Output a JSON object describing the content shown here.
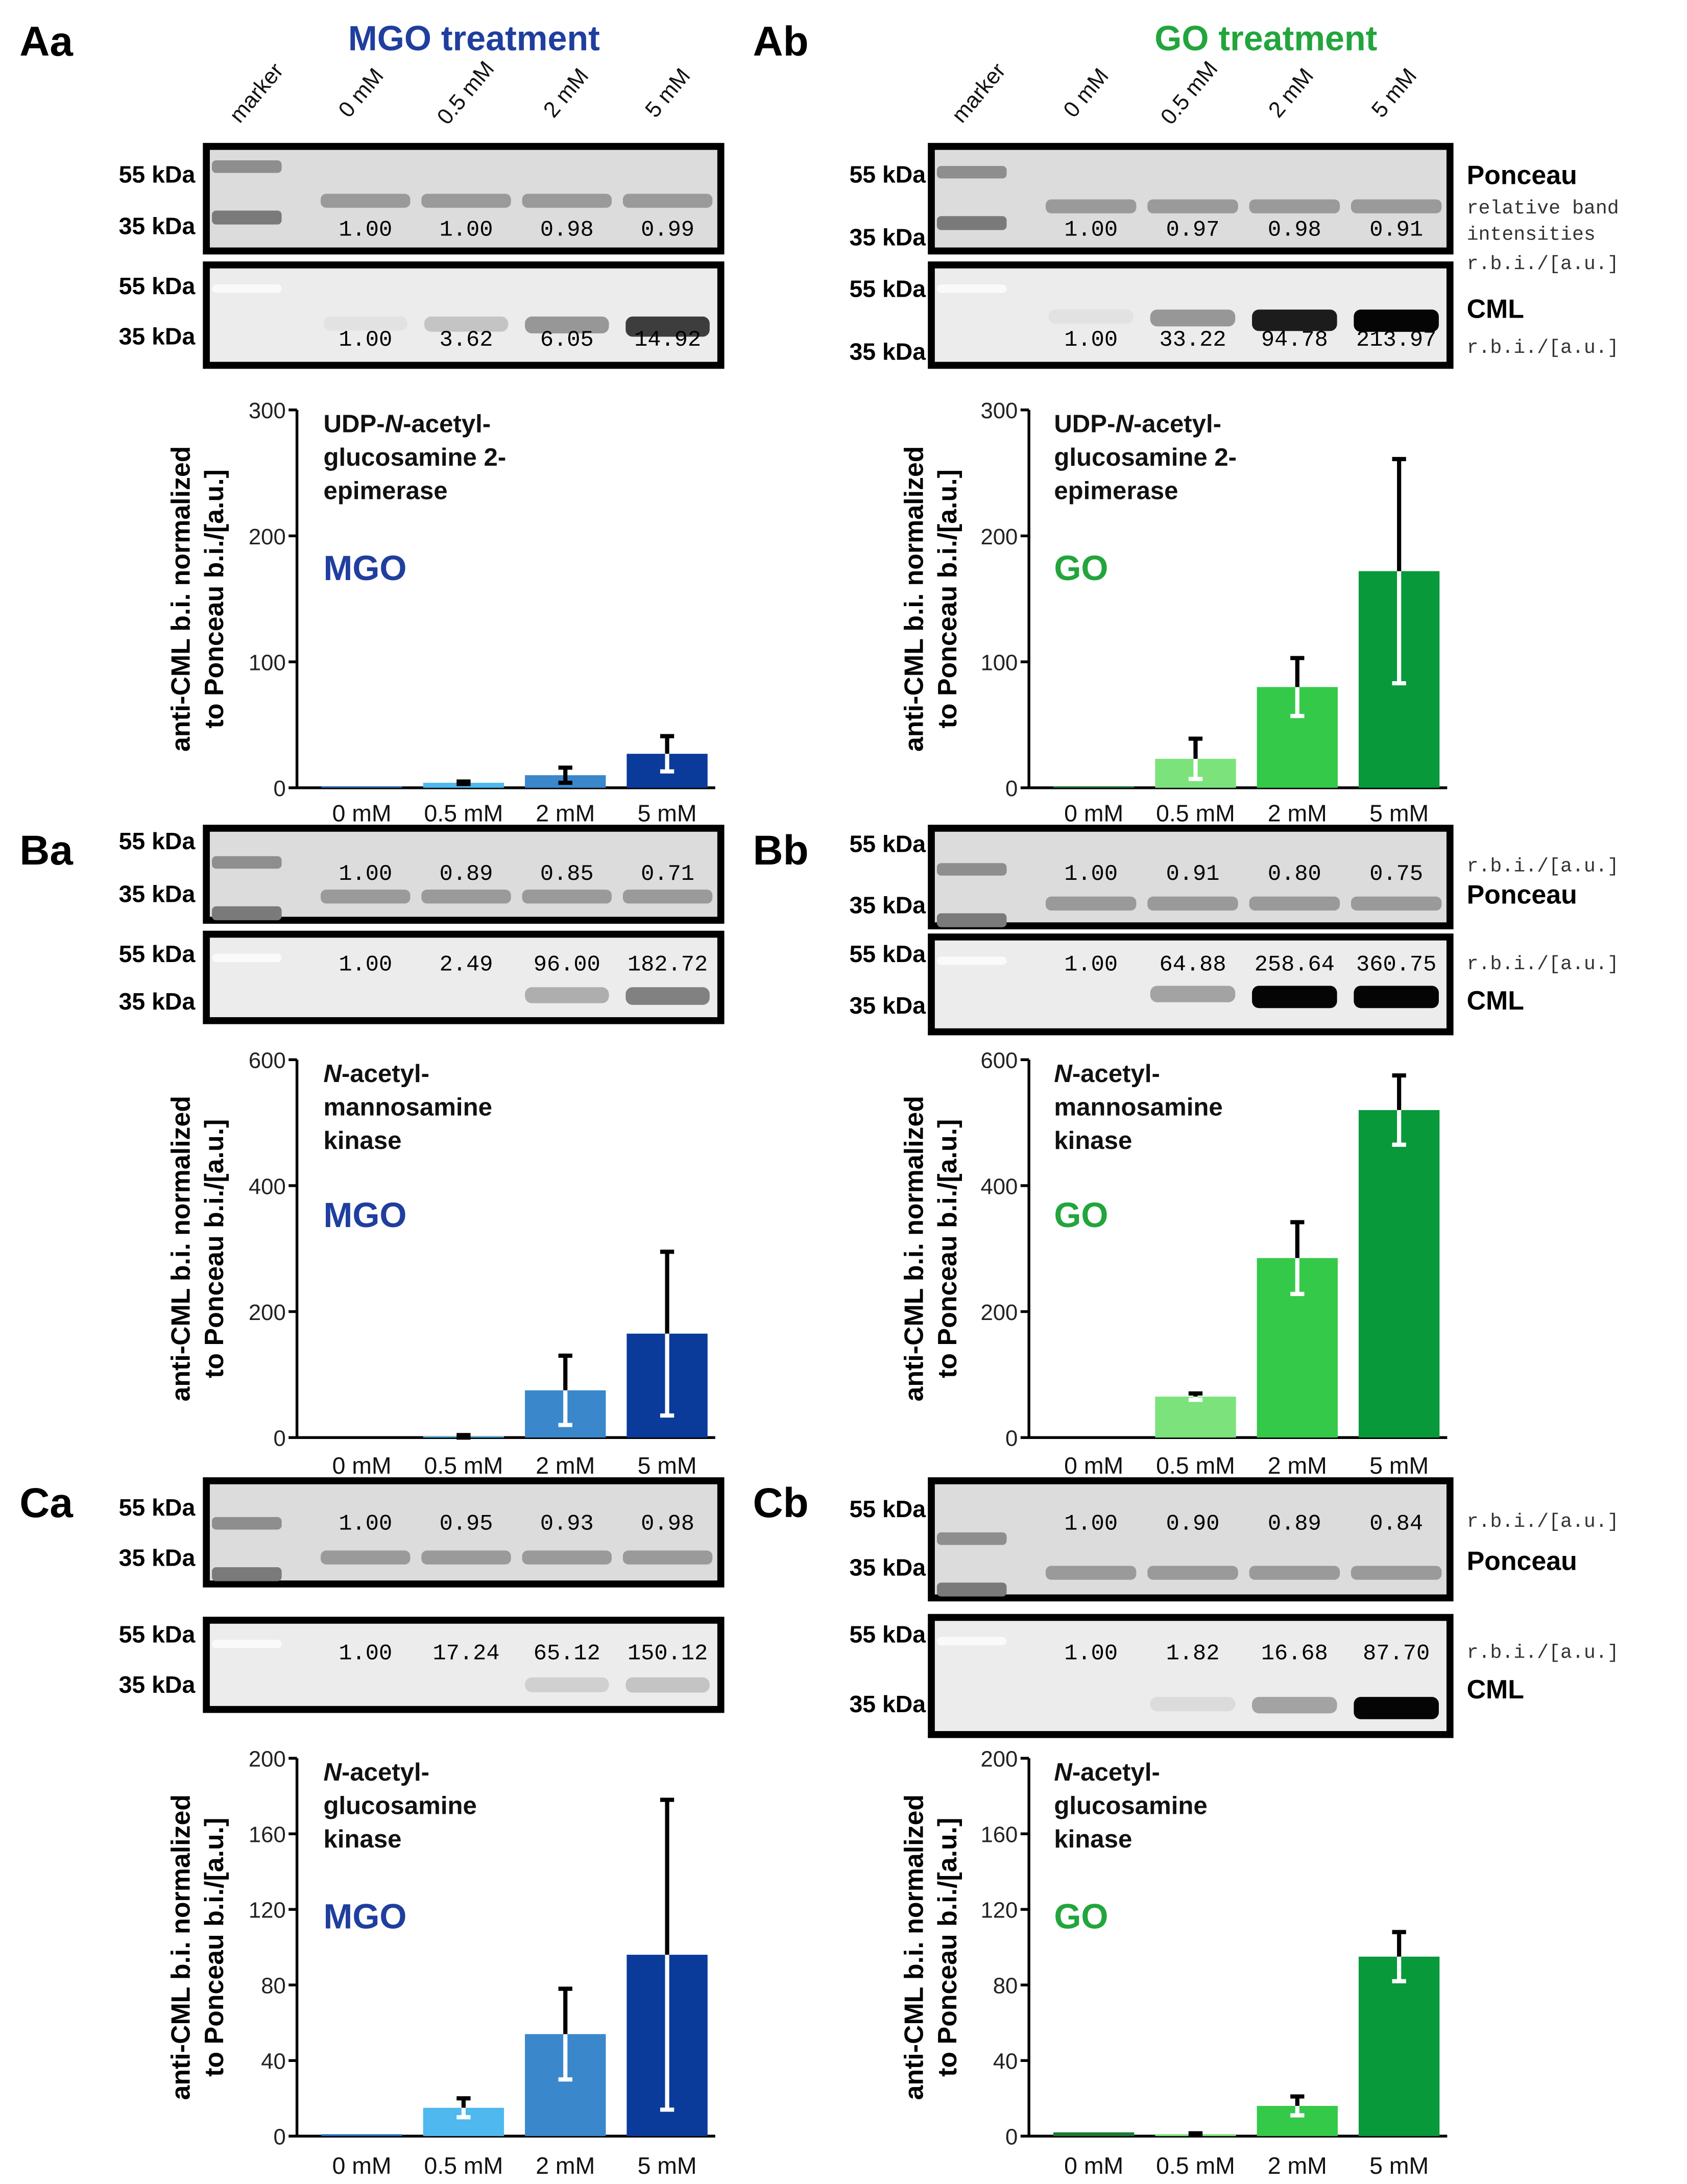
{
  "colors": {
    "mgo_title": "#1f3e9e",
    "go_title": "#22a53c",
    "mgo_bars": [
      "#2a6cc0",
      "#4fb8ee",
      "#3a87cc",
      "#0a3a9a"
    ],
    "go_bars": [
      "#1a7a35",
      "#7ce27c",
      "#35c94a",
      "#07993a"
    ],
    "error_dark": "#000000",
    "error_light": "#ffffff"
  },
  "headers": {
    "mgo": "MGO treatment",
    "go": "GO treatment"
  },
  "common": {
    "lanes": [
      "marker",
      "0 mM",
      "0.5 mM",
      "2 mM",
      "5 mM"
    ],
    "kda_55": "55 kDa",
    "kda_35": "35 kDa",
    "ponceau": "Ponceau",
    "cml": "CML",
    "rbi_full_1": "relative band",
    "rbi_full_2": "intensities",
    "rbi_abbr": "r.b.i./[a.u.]",
    "ylabel_1": "anti-CML b.i. normalized",
    "ylabel_2": "to Ponceau b.i./[a.u.]"
  },
  "panels": [
    {
      "label": "Aa",
      "ponceau_values": [
        "1.00",
        "1.00",
        "0.98",
        "0.99"
      ],
      "cml_values": [
        "1.00",
        "3.62",
        "6.05",
        "14.92"
      ],
      "treatment_label": "MGO",
      "title_lines": [
        "UDP-N-acetyl-",
        "glucosamine 2-",
        "epimerase"
      ]
    },
    {
      "label": "Ab",
      "ponceau_values": [
        "1.00",
        "0.97",
        "0.98",
        "0.91"
      ],
      "cml_values": [
        "1.00",
        "33.22",
        "94.78",
        "213.97"
      ],
      "treatment_label": "GO",
      "title_lines": [
        "UDP-N-acetyl-",
        "glucosamine 2-",
        "epimerase"
      ]
    },
    {
      "label": "Ba",
      "ponceau_values": [
        "1.00",
        "0.89",
        "0.85",
        "0.71"
      ],
      "cml_values": [
        "1.00",
        "2.49",
        "96.00",
        "182.72"
      ],
      "treatment_label": "MGO",
      "title_lines": [
        "N-acetyl-",
        "mannosamine",
        "kinase"
      ]
    },
    {
      "label": "Bb",
      "ponceau_values": [
        "1.00",
        "0.91",
        "0.80",
        "0.75"
      ],
      "cml_values": [
        "1.00",
        "64.88",
        "258.64",
        "360.75"
      ],
      "treatment_label": "GO",
      "title_lines": [
        "N-acetyl-",
        "mannosamine",
        "kinase"
      ]
    },
    {
      "label": "Ca",
      "ponceau_values": [
        "1.00",
        "0.95",
        "0.93",
        "0.98"
      ],
      "cml_values": [
        "1.00",
        "17.24",
        "65.12",
        "150.12"
      ],
      "treatment_label": "MGO",
      "title_lines": [
        "N-acetyl-",
        "glucosamine",
        "kinase"
      ]
    },
    {
      "label": "Cb",
      "ponceau_values": [
        "1.00",
        "0.90",
        "0.89",
        "0.84"
      ],
      "cml_values": [
        "1.00",
        "1.82",
        "16.68",
        "87.70"
      ],
      "treatment_label": "GO",
      "title_lines": [
        "N-acetyl-",
        "glucosamine",
        "kinase"
      ]
    }
  ],
  "chart_data": [
    {
      "type": "bar",
      "panel": "Aa",
      "title": "UDP-N-acetyl-glucosamine 2-epimerase",
      "categories": [
        "0 mM",
        "0.5 mM",
        "2 mM",
        "5 mM"
      ],
      "values": [
        1,
        4,
        10,
        27
      ],
      "error": [
        0,
        1,
        6,
        14
      ],
      "ylim": [
        0,
        300
      ],
      "yticks": [
        0,
        100,
        200,
        300
      ],
      "ylabel": "anti-CML b.i. normalized to Ponceau b.i./[a.u.]",
      "series_label": "MGO"
    },
    {
      "type": "bar",
      "panel": "Ab",
      "title": "UDP-N-acetyl-glucosamine 2-epimerase",
      "categories": [
        "0 mM",
        "0.5 mM",
        "2 mM",
        "5 mM"
      ],
      "values": [
        1,
        23,
        80,
        172
      ],
      "error": [
        0,
        16,
        23,
        89
      ],
      "ylim": [
        0,
        300
      ],
      "yticks": [
        0,
        100,
        200,
        300
      ],
      "ylabel": "anti-CML b.i. normalized to Ponceau b.i./[a.u.]",
      "series_label": "GO"
    },
    {
      "type": "bar",
      "panel": "Ba",
      "title": "N-acetyl-mannosamine kinase",
      "categories": [
        "0 mM",
        "0.5 mM",
        "2 mM",
        "5 mM"
      ],
      "values": [
        0,
        2,
        75,
        165
      ],
      "error": [
        0,
        2,
        55,
        130
      ],
      "ylim": [
        0,
        600
      ],
      "yticks": [
        0,
        200,
        400,
        600
      ],
      "ylabel": "anti-CML b.i. normalized to Ponceau b.i./[a.u.]",
      "series_label": "MGO"
    },
    {
      "type": "bar",
      "panel": "Bb",
      "title": "N-acetyl-mannosamine kinase",
      "categories": [
        "0 mM",
        "0.5 mM",
        "2 mM",
        "5 mM"
      ],
      "values": [
        0,
        65,
        285,
        520
      ],
      "error": [
        0,
        5,
        57,
        55
      ],
      "ylim": [
        0,
        600
      ],
      "yticks": [
        0,
        200,
        400,
        600
      ],
      "ylabel": "anti-CML b.i. normalized to Ponceau b.i./[a.u.]",
      "series_label": "GO"
    },
    {
      "type": "bar",
      "panel": "Ca",
      "title": "N-acetyl-glucosamine kinase",
      "categories": [
        "0 mM",
        "0.5 mM",
        "2 mM",
        "5 mM"
      ],
      "values": [
        1,
        15,
        54,
        96
      ],
      "error": [
        0,
        5,
        24,
        82
      ],
      "ylim": [
        0,
        200
      ],
      "yticks": [
        0,
        40,
        80,
        120,
        160,
        200
      ],
      "ylabel": "anti-CML b.i. normalized to Ponceau b.i./[a.u.]",
      "series_label": "MGO"
    },
    {
      "type": "bar",
      "panel": "Cb",
      "title": "N-acetyl-glucosamine kinase",
      "categories": [
        "0 mM",
        "0.5 mM",
        "2 mM",
        "5 mM"
      ],
      "values": [
        2,
        1,
        16,
        95
      ],
      "error": [
        0,
        0.5,
        5,
        13
      ],
      "ylim": [
        0,
        200
      ],
      "yticks": [
        0,
        40,
        80,
        120,
        160,
        200
      ],
      "ylabel": "anti-CML b.i. normalized to Ponceau b.i./[a.u.]",
      "series_label": "GO"
    }
  ]
}
